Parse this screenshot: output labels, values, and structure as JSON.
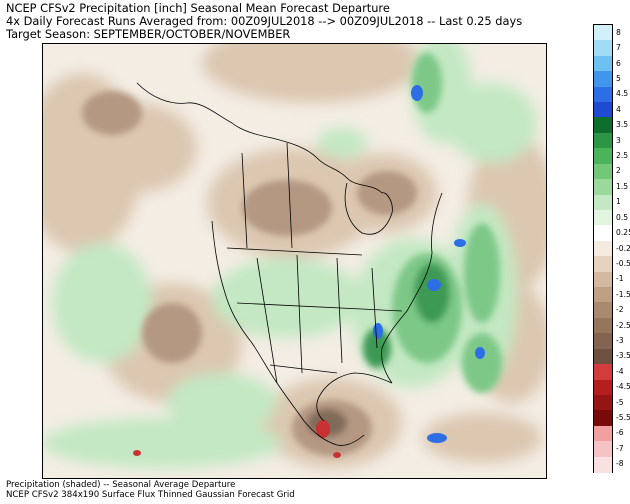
{
  "header": {
    "line1": "NCEP CFSv2 Precipitation [inch] Seasonal Mean Forecast Departure",
    "line2": "4x Daily Forecast Runs Averaged from: 00Z09JUL2018 --> 00Z09JUL2018 -- Last 0.25 days",
    "line3": "Target Season: SEPTEMBER/OCTOBER/NOVEMBER"
  },
  "footer": {
    "line1": "Precipitation (shaded) -- Seasonal Average Departure",
    "line2": "NCEP CFSv2 384x190 Surface Flux Thinned Gaussian Forecast Grid"
  },
  "colorbar": {
    "labels": [
      "8",
      "7",
      "6",
      "5",
      "4.5",
      "4",
      "3.5",
      "3",
      "2.5",
      "2",
      "1.5",
      "1",
      "0.5",
      "0.25",
      "-0.25",
      "-0.5",
      "-1",
      "-1.5",
      "-2",
      "-2.5",
      "-3",
      "-3.5",
      "-4",
      "-4.5",
      "-5",
      "-5.5",
      "-6",
      "-7",
      "-8"
    ],
    "colors": [
      "#d2f0fa",
      "#a0dcf5",
      "#6ec0f0",
      "#4196eb",
      "#2d6ee6",
      "#1e4bd2",
      "#0f6e2d",
      "#2d9646",
      "#4bb45a",
      "#73c878",
      "#9bd89b",
      "#c3e8c3",
      "#e1f5e1",
      "#ffffff",
      "#f5ebe1",
      "#e6d2be",
      "#d2b9a0",
      "#bea082",
      "#aa8a6e",
      "#96765a",
      "#826450",
      "#6e5040",
      "#d23c3c",
      "#b41e1e",
      "#961414",
      "#780a0a",
      "#f0a0a0",
      "#f5c3c3",
      "#fae1e1"
    ]
  },
  "map": {
    "colors": {
      "ocean_base": "#f3ede4",
      "wet_light": "#c3e8c3",
      "wet_mid": "#7dc887",
      "wet_dark": "#3c9a55",
      "blue_max": "#2d6ee6",
      "dry_light": "#dcc7b1",
      "dry_mid": "#b49882",
      "dry_dark": "#806a58",
      "red_max": "#c83232",
      "lines": "#000000"
    }
  }
}
